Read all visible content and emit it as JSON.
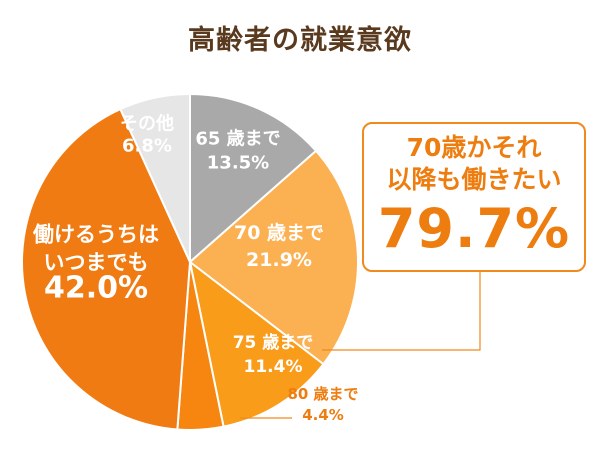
{
  "colors": {
    "title": "#5a3a1e",
    "accent": "#ee7d10",
    "slice_65": "#a9a9a9",
    "slice_70": "#fbb052",
    "slice_75": "#f89c1a",
    "slice_80": "#f6860f",
    "slice_always": "#f07b12",
    "slice_other": "#e6e6e6"
  },
  "chart_data": {
    "type": "pie",
    "title": "高齢者の就業意欲",
    "slices": [
      {
        "lines": [
          "65 歳まで",
          "13.5%"
        ],
        "value": 13.5,
        "color": "#a9a9a9"
      },
      {
        "lines": [
          "70 歳まで",
          "21.9%"
        ],
        "value": 21.9,
        "color": "#fbb052"
      },
      {
        "lines": [
          "75 歳まで",
          "11.4%"
        ],
        "value": 11.4,
        "color": "#f89c1a"
      },
      {
        "lines": [
          "80 歳まで",
          "4.4%"
        ],
        "value": 4.4,
        "color": "#f6860f"
      },
      {
        "lines": [
          "働けるうちは",
          "いつまでも",
          "42.0%"
        ],
        "value": 42.0,
        "color": "#f07b12"
      },
      {
        "lines": [
          "その他",
          "6.8%"
        ],
        "value": 6.8,
        "color": "#e6e6e6"
      }
    ],
    "callout": {
      "line1": "70歳かそれ",
      "line2": "以降も働きたい",
      "value": "79.7%"
    }
  }
}
